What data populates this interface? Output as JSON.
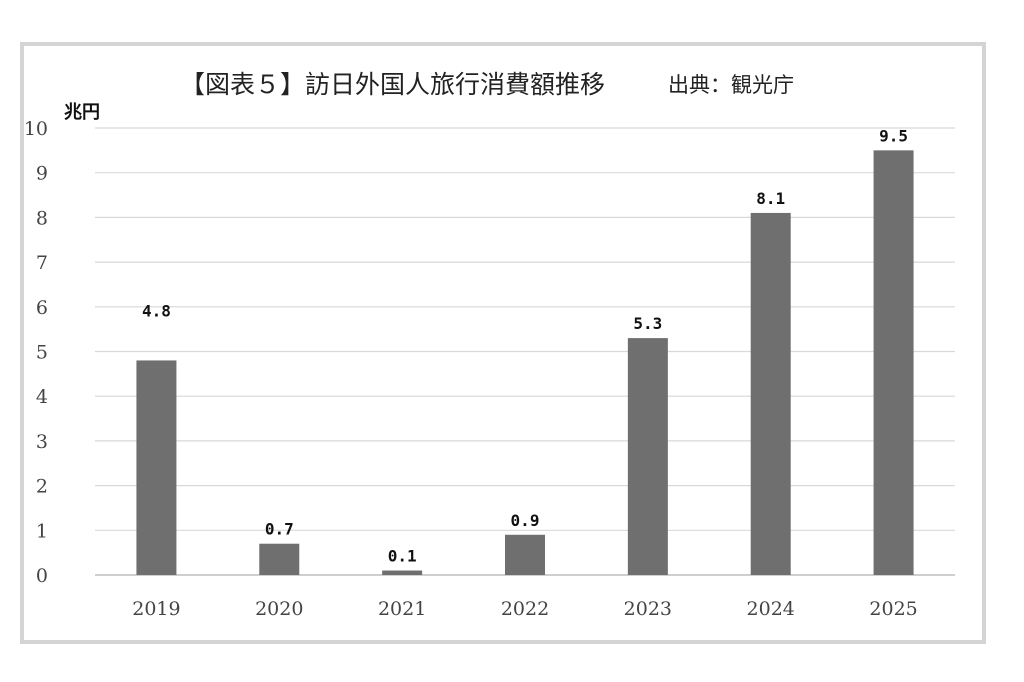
{
  "chart_data": {
    "type": "bar",
    "title": "【図表５】訪日外国人旅行消費額推移",
    "source": "出典：観光庁",
    "ylabel": "兆円",
    "xlabel": "",
    "categories": [
      "2019",
      "2020",
      "2021",
      "2022",
      "2023",
      "2024",
      "2025"
    ],
    "values": [
      4.8,
      0.7,
      0.1,
      0.9,
      5.3,
      8.1,
      9.5
    ],
    "data_labels": [
      "4.8",
      "0.7",
      "0.1",
      "0.9",
      "5.3",
      "8.1",
      "9.5"
    ],
    "ylim": [
      0,
      10
    ],
    "yticks": [
      0,
      1,
      2,
      3,
      4,
      5,
      6,
      7,
      8,
      9,
      10
    ],
    "grid": true,
    "legend": "none",
    "colors": {
      "bar": "#6f6f6f",
      "grid": "#d9d9d9",
      "axis": "#bfbfbf"
    }
  }
}
